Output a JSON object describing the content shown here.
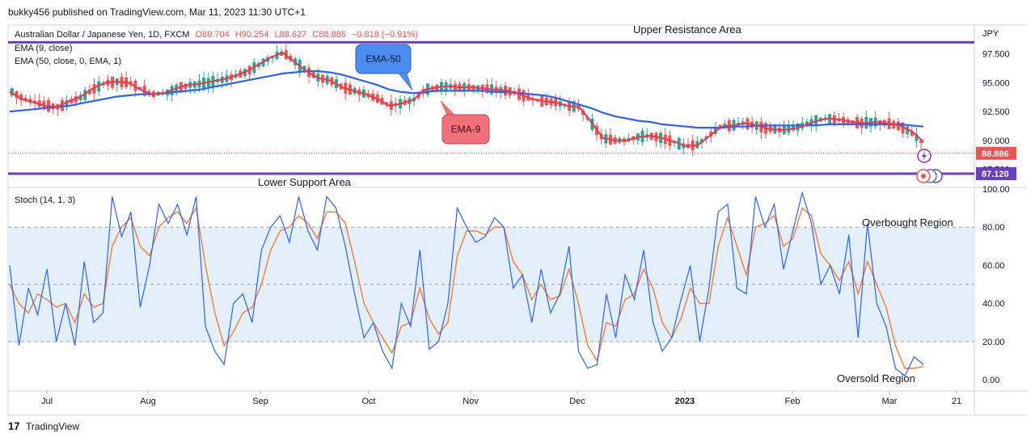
{
  "header": {
    "published": "bukky456 published on TradingView.com, Mar 11, 2023 11:30 UTC+1"
  },
  "footer": {
    "brand": "TradingView"
  },
  "chart_data": {
    "type": "candlestick",
    "symbol_line": {
      "title": "Australian Dollar / Japanese Yen, 1D, FXCM",
      "open": "O89.704",
      "high": "H90.254",
      "low": "L88.627",
      "close": "C88.886",
      "change": "−0.818 (−0.91%)"
    },
    "indicators": [
      "EMA (9, close)",
      "EMA (50, close, 0, EMA, 1)"
    ],
    "currency": "JPY",
    "price_axis": {
      "ticks": [
        "97.500",
        "95.000",
        "92.500",
        "90.000",
        "87.500"
      ],
      "ylim": [
        86.0,
        100.0
      ]
    },
    "last_price_label": "88.886",
    "support_price_label": "87.120",
    "resistance_level": 98.5,
    "support_level": 87.12,
    "last_price": 88.886,
    "annotations": {
      "upper": "Upper Resistance Area",
      "lower": "Lower Support Area",
      "ema50": "EMA-50",
      "ema9": "EMA-9"
    },
    "time_axis": [
      "Jul",
      "Aug",
      "Sep",
      "Oct",
      "Nov",
      "Dec",
      "2023",
      "Feb",
      "Mar",
      "21"
    ],
    "ema9_series": [
      94.2,
      93.6,
      93.3,
      93.0,
      92.9,
      93.4,
      93.8,
      94.5,
      95.0,
      95.1,
      95.0,
      94.4,
      94.0,
      94.1,
      94.5,
      94.8,
      94.9,
      95.1,
      95.3,
      95.6,
      96.0,
      96.6,
      97.2,
      97.6,
      96.8,
      96.0,
      95.4,
      95.2,
      94.6,
      94.3,
      94.0,
      93.6,
      93.0,
      93.2,
      93.5,
      94.4,
      94.6,
      94.7,
      94.6,
      94.6,
      94.5,
      94.4,
      94.3,
      94.0,
      93.6,
      93.4,
      93.3,
      93.0,
      92.9,
      91.6,
      90.2,
      90.0,
      90.0,
      90.3,
      90.4,
      90.2,
      89.9,
      89.5,
      89.6,
      90.4,
      91.2,
      91.3,
      91.5,
      91.3,
      91.0,
      90.9,
      91.0,
      91.3,
      91.7,
      91.9,
      91.8,
      91.6,
      91.5,
      91.6,
      91.5,
      91.3,
      90.8,
      89.9
    ],
    "ema50_series": [
      92.5,
      92.6,
      92.7,
      92.8,
      92.9,
      93.0,
      93.2,
      93.4,
      93.6,
      93.8,
      93.9,
      94.0,
      94.0,
      94.1,
      94.2,
      94.3,
      94.4,
      94.6,
      94.8,
      95.0,
      95.2,
      95.4,
      95.6,
      95.8,
      95.9,
      96.0,
      96.0,
      95.9,
      95.7,
      95.4,
      95.1,
      94.8,
      94.4,
      94.2,
      94.1,
      94.2,
      94.3,
      94.3,
      94.3,
      94.3,
      94.3,
      94.2,
      94.2,
      94.1,
      94.0,
      93.9,
      93.7,
      93.4,
      93.1,
      92.8,
      92.4,
      92.1,
      91.9,
      91.7,
      91.6,
      91.4,
      91.3,
      91.2,
      91.1,
      91.1,
      91.1,
      91.2,
      91.2,
      91.3,
      91.3,
      91.3,
      91.3,
      91.3,
      91.3,
      91.4,
      91.4,
      91.4,
      91.4,
      91.4,
      91.4,
      91.4,
      91.3,
      91.2
    ],
    "stoch": {
      "label": "Stoch (14, 1, 3)",
      "ticks": [
        "100.00",
        "80.00",
        "60.00",
        "40.00",
        "20.00",
        "0.00"
      ],
      "ylim": [
        -5,
        100
      ],
      "band": [
        20,
        80
      ],
      "k": [
        60,
        18,
        48,
        34,
        58,
        20,
        40,
        18,
        62,
        30,
        35,
        96,
        75,
        88,
        38,
        60,
        92,
        82,
        92,
        76,
        96,
        28,
        15,
        8,
        40,
        45,
        30,
        68,
        80,
        86,
        72,
        96,
        78,
        68,
        96,
        90,
        70,
        45,
        22,
        30,
        15,
        6,
        40,
        28,
        68,
        16,
        20,
        40,
        90,
        80,
        72,
        75,
        85,
        80,
        48,
        55,
        30,
        58,
        35,
        45,
        70,
        15,
        6,
        8,
        45,
        22,
        55,
        42,
        68,
        30,
        15,
        22,
        42,
        60,
        20,
        48,
        88,
        92,
        48,
        45,
        96,
        80,
        92,
        58,
        78,
        98,
        82,
        50,
        60,
        45,
        76,
        22,
        82,
        40,
        28,
        6,
        2,
        12,
        8
      ],
      "d": [
        50,
        40,
        35,
        45,
        42,
        38,
        40,
        30,
        45,
        38,
        40,
        70,
        80,
        85,
        70,
        65,
        80,
        85,
        88,
        82,
        90,
        60,
        35,
        18,
        25,
        35,
        38,
        50,
        68,
        78,
        80,
        86,
        82,
        74,
        88,
        88,
        82,
        62,
        40,
        30,
        22,
        14,
        28,
        30,
        48,
        32,
        24,
        30,
        65,
        78,
        78,
        76,
        80,
        80,
        62,
        55,
        42,
        50,
        42,
        44,
        58,
        40,
        18,
        10,
        30,
        28,
        42,
        45,
        58,
        48,
        30,
        22,
        32,
        48,
        40,
        40,
        70,
        85,
        70,
        55,
        80,
        82,
        86,
        70,
        74,
        90,
        86,
        66,
        60,
        52,
        62,
        45,
        62,
        50,
        38,
        18,
        6,
        6,
        7
      ],
      "labels": {
        "overbought": "Overbought Region",
        "oversold": "Oversold Region"
      }
    }
  },
  "colors": {
    "ema9": "#f23645",
    "ema50": "#2962ff",
    "bull": "#26a69a",
    "bear": "#ef5350",
    "level": "#6a3fc8",
    "stoch_k": "#2962ff",
    "stoch_d": "#f57c2c",
    "band": "#e3f0fb"
  }
}
